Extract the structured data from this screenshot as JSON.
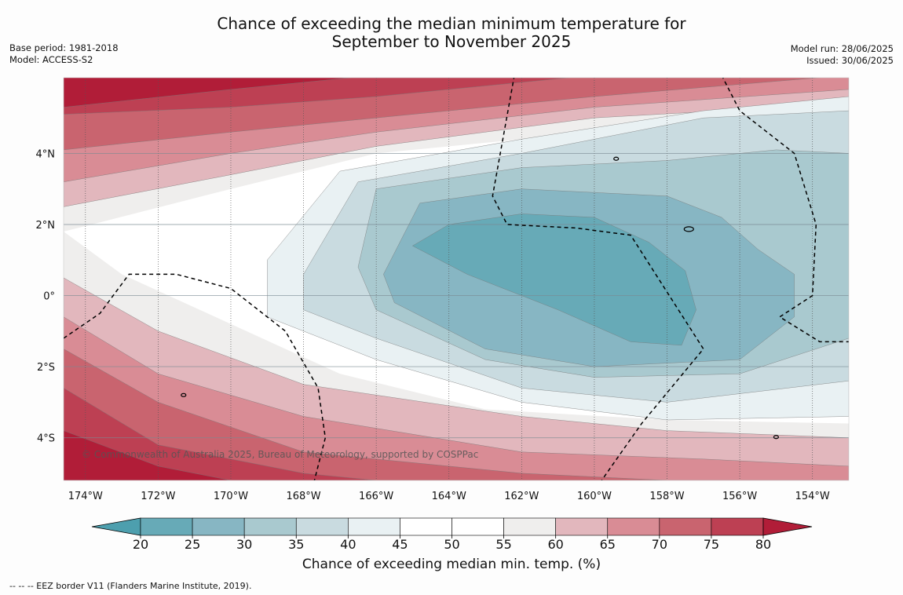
{
  "title_line1": "Chance of exceeding the median minimum temperature for",
  "title_line2": "September to November 2025",
  "meta_left": [
    "Base period: 1981-2018",
    "Model: ACCESS-S2"
  ],
  "meta_right": [
    "Model run: 28/06/2025",
    "Issued: 30/06/2025"
  ],
  "copyright": "© Commonwealth of Australia 2025, Bureau of Meteorology, supported by COSPPac",
  "footnote": "--  --  -- EEZ border V11 (Flanders Marine Institute, 2019).",
  "lon_ticks": [
    "174°W",
    "172°W",
    "170°W",
    "168°W",
    "166°W",
    "164°W",
    "162°W",
    "160°W",
    "158°W",
    "156°W",
    "154°W"
  ],
  "lon_values": [
    -174,
    -172,
    -170,
    -168,
    -166,
    -164,
    -162,
    -160,
    -158,
    -156,
    -154
  ],
  "lat_ticks": [
    "4°N",
    "2°N",
    "0°",
    "2°S",
    "4°S"
  ],
  "lat_values": [
    4,
    2,
    0,
    -2,
    -4
  ],
  "colorbar": {
    "label": "Chance of exceeding median min. temp. (%)",
    "ticks": [
      "20",
      "25",
      "30",
      "35",
      "40",
      "45",
      "50",
      "55",
      "60",
      "65",
      "70",
      "75",
      "80"
    ],
    "colors": [
      "#67aab7",
      "#87b6c3",
      "#a9c9cf",
      "#c9dbe0",
      "#e9f1f3",
      "#ffffff",
      "#ffffff",
      "#efeeed",
      "#e2b7bd",
      "#d98c95",
      "#c9646f",
      "#bd4053"
    ],
    "under_color": "#4d9fae",
    "over_color": "#b11d38"
  },
  "regions": [
    {
      "name": "region-60-65",
      "color": "#e2b7bd",
      "points": [
        [
          -174.6,
          6.2
        ],
        [
          -153,
          6.2
        ],
        [
          -153,
          5.4
        ],
        [
          -160,
          5
        ],
        [
          -166,
          4.2
        ],
        [
          -170,
          3.4
        ],
        [
          -174.6,
          2.5
        ]
      ]
    },
    {
      "name": "region-65-70",
      "color": "#d98c95",
      "points": [
        [
          -174.6,
          6.2
        ],
        [
          -153,
          6.2
        ],
        [
          -153,
          5.8
        ],
        [
          -160,
          5.3
        ],
        [
          -166,
          4.6
        ],
        [
          -170,
          4
        ],
        [
          -174.6,
          3.2
        ]
      ]
    },
    {
      "name": "region-70-75",
      "color": "#c9646f",
      "points": [
        [
          -174.6,
          6.2
        ],
        [
          -153,
          6.2
        ],
        [
          -160,
          5.6
        ],
        [
          -166,
          5
        ],
        [
          -170,
          4.6
        ],
        [
          -174.6,
          4.1
        ]
      ]
    },
    {
      "name": "region-75-80",
      "color": "#bd4053",
      "points": [
        [
          -174.6,
          6.2
        ],
        [
          -160,
          6.2
        ],
        [
          -166,
          5.6
        ],
        [
          -170,
          5.3
        ],
        [
          -174.6,
          5.1
        ]
      ]
    },
    {
      "name": "region-80-plus",
      "color": "#b11d38",
      "points": [
        [
          -174.6,
          6.2
        ],
        [
          -166,
          6.2
        ],
        [
          -170,
          5.8
        ],
        [
          -174.6,
          5.3
        ]
      ]
    },
    {
      "name": "region-south-60-65",
      "color": "#e2b7bd",
      "points": [
        [
          -174.6,
          0.5
        ],
        [
          -172,
          -1
        ],
        [
          -168,
          -2.5
        ],
        [
          -162,
          -3.4
        ],
        [
          -158,
          -3.8
        ],
        [
          -153,
          -4
        ],
        [
          -153,
          -5.2
        ],
        [
          -174.6,
          -5.2
        ]
      ]
    },
    {
      "name": "region-south-65-70",
      "color": "#d98c95",
      "points": [
        [
          -174.6,
          -0.6
        ],
        [
          -172,
          -2.2
        ],
        [
          -168,
          -3.4
        ],
        [
          -162,
          -4.4
        ],
        [
          -157,
          -4.6
        ],
        [
          -153,
          -4.8
        ],
        [
          -153,
          -5.2
        ],
        [
          -174.6,
          -5.2
        ]
      ]
    },
    {
      "name": "region-south-70-75",
      "color": "#c9646f",
      "points": [
        [
          -174.6,
          -1.5
        ],
        [
          -172,
          -3
        ],
        [
          -168,
          -4.4
        ],
        [
          -162,
          -5
        ],
        [
          -158,
          -5.2
        ],
        [
          -174.6,
          -5.2
        ]
      ]
    },
    {
      "name": "region-south-75-80",
      "color": "#bd4053",
      "points": [
        [
          -174.6,
          -2.6
        ],
        [
          -172,
          -4.2
        ],
        [
          -168,
          -5
        ],
        [
          -166,
          -5.2
        ],
        [
          -174.6,
          -5.2
        ]
      ]
    },
    {
      "name": "region-south-80-plus",
      "color": "#b11d38",
      "points": [
        [
          -174.6,
          -3.8
        ],
        [
          -172,
          -4.8
        ],
        [
          -170,
          -5.2
        ],
        [
          -174.6,
          -5.2
        ]
      ]
    },
    {
      "name": "region-40-45",
      "color": "#e9f1f3",
      "points": [
        [
          -169,
          1
        ],
        [
          -167,
          3.5
        ],
        [
          -162,
          4.4
        ],
        [
          -157,
          5.2
        ],
        [
          -153,
          5.6
        ],
        [
          -153,
          -3.4
        ],
        [
          -158,
          -3.5
        ],
        [
          -162,
          -3
        ],
        [
          -166,
          -1.8
        ],
        [
          -169,
          -0.6
        ]
      ]
    },
    {
      "name": "region-35-40",
      "color": "#c9dbe0",
      "points": [
        [
          -168,
          0.6
        ],
        [
          -166.5,
          3.2
        ],
        [
          -162,
          4
        ],
        [
          -157,
          5
        ],
        [
          -153,
          5.2
        ],
        [
          -153,
          -2.4
        ],
        [
          -158,
          -3
        ],
        [
          -162,
          -2.6
        ],
        [
          -166,
          -1.2
        ],
        [
          -168,
          -0.4
        ]
      ]
    },
    {
      "name": "region-30-35",
      "color": "#a9c9cf",
      "points": [
        [
          -166.5,
          0.8
        ],
        [
          -166,
          3
        ],
        [
          -162,
          3.6
        ],
        [
          -158,
          3.8
        ],
        [
          -155,
          4.1
        ],
        [
          -153,
          4
        ],
        [
          -153,
          -1.2
        ],
        [
          -156,
          -2.2
        ],
        [
          -160,
          -2.3
        ],
        [
          -163,
          -1.8
        ],
        [
          -166,
          -0.4
        ]
      ]
    },
    {
      "name": "region-25-30",
      "color": "#87b6c3",
      "points": [
        [
          -165.8,
          0.6
        ],
        [
          -164.8,
          2.6
        ],
        [
          -162,
          3
        ],
        [
          -158,
          2.8
        ],
        [
          -156.5,
          2.2
        ],
        [
          -155.5,
          1.3
        ],
        [
          -154.5,
          0.6
        ],
        [
          -154.5,
          -0.6
        ],
        [
          -156,
          -1.8
        ],
        [
          -160,
          -2
        ],
        [
          -163,
          -1.5
        ],
        [
          -165.5,
          -0.2
        ]
      ]
    },
    {
      "name": "region-20-25",
      "color": "#67aab7",
      "points": [
        [
          -165,
          1.4
        ],
        [
          -164,
          2
        ],
        [
          -162,
          2.3
        ],
        [
          -160,
          2.2
        ],
        [
          -158.5,
          1.5
        ],
        [
          -157.5,
          0.7
        ],
        [
          -157.2,
          -0.4
        ],
        [
          -157.6,
          -1.4
        ],
        [
          -159,
          -1.3
        ],
        [
          -161,
          -0.4
        ],
        [
          -163.5,
          0.6
        ]
      ]
    }
  ],
  "eez_lines": [
    [
      [
        -174.6,
        -1.2
      ],
      [
        -173.6,
        -0.5
      ],
      [
        -172.8,
        0.6
      ],
      [
        -171.5,
        0.6
      ],
      [
        -170,
        0.2
      ],
      [
        -168.5,
        -1
      ],
      [
        -167.6,
        -2.6
      ],
      [
        -167.4,
        -4
      ],
      [
        -167.7,
        -5.2
      ]
    ],
    [
      [
        -162.2,
        6.2
      ],
      [
        -162.8,
        2.8
      ],
      [
        -162.4,
        2
      ],
      [
        -160.5,
        1.9
      ],
      [
        -159,
        1.7
      ],
      [
        -157,
        -1.5
      ],
      [
        -158.7,
        -3.6
      ],
      [
        -159.8,
        -5.2
      ]
    ],
    [
      [
        -156.5,
        6.2
      ],
      [
        -156,
        5.2
      ],
      [
        -154.5,
        4
      ],
      [
        -153.9,
        2
      ],
      [
        -154,
        0
      ],
      [
        -154.9,
        -0.6
      ],
      [
        -153.8,
        -1.3
      ],
      [
        -153,
        -1.3
      ]
    ]
  ],
  "islands": [
    {
      "lon": -159.4,
      "lat": 3.85
    },
    {
      "lon": -157.4,
      "lat": 1.87
    },
    {
      "lon": -171.3,
      "lat": -2.8
    },
    {
      "lon": -155.0,
      "lat": -3.98
    }
  ]
}
